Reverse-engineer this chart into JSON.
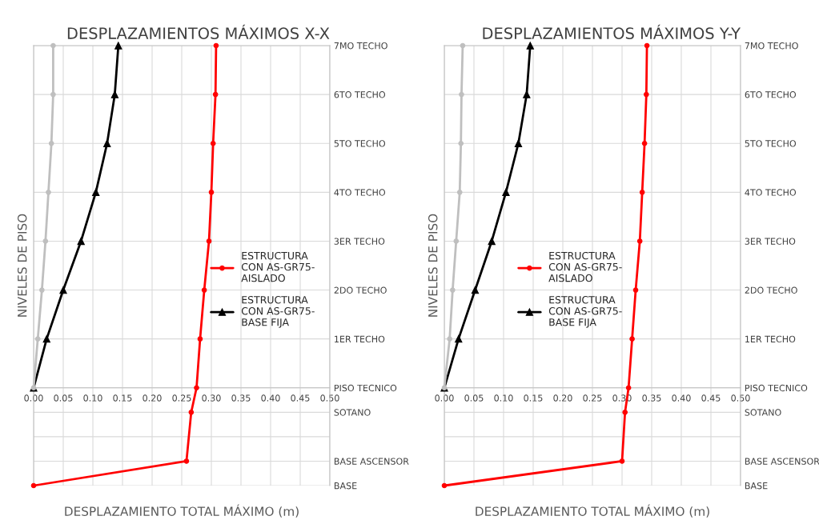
{
  "chart_data": [
    {
      "type": "line",
      "title": "DESPLAZAMIENTOS MÁXIMOS X-X",
      "xlabel": "DESPLAZAMIENTO TOTAL MÁXIMO (m)",
      "ylabel": "NIVELES DE PISO",
      "xlim": [
        0,
        0.5
      ],
      "xticks": [
        {
          "value": 0,
          "label": "0.00"
        },
        {
          "value": 0.05,
          "label": "0.05"
        },
        {
          "value": 0.1,
          "label": "0.10"
        },
        {
          "value": 0.15,
          "label": "0.15"
        },
        {
          "value": 0.2,
          "label": "0.20"
        },
        {
          "value": 0.25,
          "label": "0.25"
        },
        {
          "value": 0.3,
          "label": "0.30"
        },
        {
          "value": 0.35,
          "label": "0.35"
        },
        {
          "value": 0.4,
          "label": "0.40"
        },
        {
          "value": 0.45,
          "label": "0.45"
        },
        {
          "value": 0.5,
          "label": "0.50"
        }
      ],
      "ylim": [
        -2,
        7
      ],
      "yticks": [
        {
          "value": -2,
          "label": "BASE"
        },
        {
          "value": -1.5,
          "label": "BASE ASCENSOR"
        },
        {
          "value": -1,
          "label": null
        },
        {
          "value": -0.5,
          "label": "SOTANO"
        },
        {
          "value": 0,
          "label": "PISO TECNICO"
        },
        {
          "value": 1,
          "label": "1ER TECHO"
        },
        {
          "value": 2,
          "label": "2DO TECHO"
        },
        {
          "value": 3,
          "label": "3ER TECHO"
        },
        {
          "value": 4,
          "label": "4TO TECHO"
        },
        {
          "value": 5,
          "label": "5TO TECHO"
        },
        {
          "value": 6,
          "label": "6TO TECHO"
        },
        {
          "value": 7,
          "label": "7MO TECHO"
        }
      ],
      "grid": true,
      "legend": "center right",
      "series": [
        {
          "name": "ESTRUCTURA\nCON AS-GR75-\nAISLADO",
          "color": "#ff0000",
          "marker": "circle",
          "x": [
            0,
            0.258,
            0.266,
            0.275,
            0.281,
            0.288,
            0.296,
            0.3,
            0.303,
            0.307,
            0.308
          ],
          "values": [
            -2,
            -1.5,
            -0.5,
            0,
            1,
            2,
            3,
            4,
            5,
            6,
            7
          ]
        },
        {
          "name": "ESTRUCTURA\nCON AS-GR75-\nBASE FIJA",
          "color": "#000000",
          "marker": "triangle",
          "x": [
            0,
            0.022,
            0.05,
            0.08,
            0.105,
            0.124,
            0.137,
            0.143
          ],
          "values": [
            0,
            1,
            2,
            3,
            4,
            5,
            6,
            7
          ]
        },
        {
          "color": "#bfbfbf",
          "marker": "circle",
          "x": [
            0,
            0.007,
            0.014,
            0.02,
            0.025,
            0.03,
            0.033,
            0.033
          ],
          "values": [
            0,
            1,
            2,
            3,
            4,
            5,
            6,
            7
          ]
        }
      ]
    },
    {
      "type": "line",
      "title": "DESPLAZAMIENTOS MÁXIMOS Y-Y",
      "xlabel": "DESPLAZAMIENTO TOTAL MÁXIMO (m)",
      "ylabel": "NIVELES DE PISO",
      "xlim": [
        0,
        0.5
      ],
      "xticks": [
        {
          "value": 0,
          "label": "0.00"
        },
        {
          "value": 0.05,
          "label": "0.05"
        },
        {
          "value": 0.1,
          "label": "0.10"
        },
        {
          "value": 0.15,
          "label": "0.15"
        },
        {
          "value": 0.2,
          "label": "0.20"
        },
        {
          "value": 0.25,
          "label": "0.25"
        },
        {
          "value": 0.3,
          "label": "0.30"
        },
        {
          "value": 0.35,
          "label": "0.35"
        },
        {
          "value": 0.4,
          "label": "0.40"
        },
        {
          "value": 0.45,
          "label": "0.45"
        },
        {
          "value": 0.5,
          "label": "0.50"
        }
      ],
      "ylim": [
        -2,
        7
      ],
      "yticks": [
        {
          "value": -2,
          "label": "BASE"
        },
        {
          "value": -1.5,
          "label": "BASE ASCENSOR"
        },
        {
          "value": -1,
          "label": null
        },
        {
          "value": -0.5,
          "label": "SOTANO"
        },
        {
          "value": 0,
          "label": "PISO TECNICO"
        },
        {
          "value": 1,
          "label": "1ER TECHO"
        },
        {
          "value": 2,
          "label": "2DO TECHO"
        },
        {
          "value": 3,
          "label": "3ER TECHO"
        },
        {
          "value": 4,
          "label": "4TO TECHO"
        },
        {
          "value": 5,
          "label": "5TO TECHO"
        },
        {
          "value": 6,
          "label": "6TO TECHO"
        },
        {
          "value": 7,
          "label": "7MO TECHO"
        }
      ],
      "grid": true,
      "legend": "center left",
      "series": [
        {
          "name": "ESTRUCTURA\nCON AS-GR75-\nAISLADO",
          "color": "#ff0000",
          "marker": "circle",
          "x": [
            0,
            0.3,
            0.305,
            0.311,
            0.317,
            0.323,
            0.33,
            0.334,
            0.338,
            0.341,
            0.342
          ],
          "values": [
            -2,
            -1.5,
            -0.5,
            0,
            1,
            2,
            3,
            4,
            5,
            6,
            7
          ]
        },
        {
          "name": "ESTRUCTURA\nCON AS-GR75-\nBASE FIJA",
          "color": "#000000",
          "marker": "triangle",
          "x": [
            0,
            0.024,
            0.052,
            0.08,
            0.104,
            0.125,
            0.139,
            0.145
          ],
          "values": [
            0,
            1,
            2,
            3,
            4,
            5,
            6,
            7
          ]
        },
        {
          "color": "#bfbfbf",
          "marker": "circle",
          "x": [
            0,
            0.009,
            0.014,
            0.02,
            0.026,
            0.028,
            0.029,
            0.031
          ],
          "values": [
            0,
            1,
            2,
            3,
            4,
            5,
            6,
            7
          ]
        }
      ]
    }
  ]
}
